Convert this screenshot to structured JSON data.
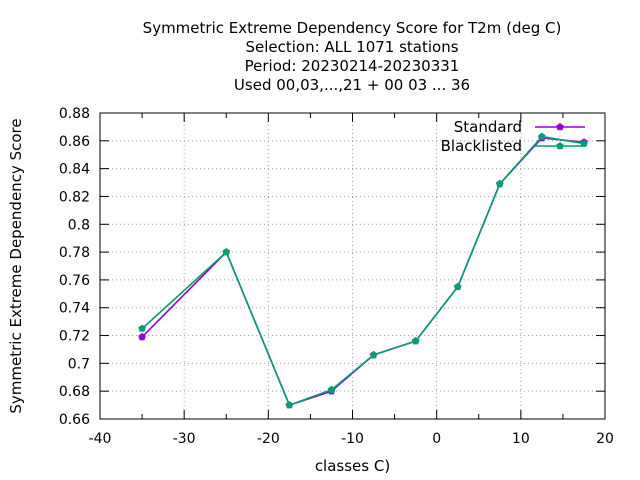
{
  "chart_data": {
    "type": "line",
    "title_lines": [
      "Symmetric Extreme Dependency Score  for T2m (deg C)",
      "Selection: ALL   1071 stations",
      "Period: 20230214-20230331",
      "Used  00,03,...,21  + 00 03 ... 36"
    ],
    "xlabel": "classes C)",
    "ylabel": "Symmetric Extreme Dependency Score",
    "xlim": [
      -40,
      20
    ],
    "ylim": [
      0.66,
      0.88
    ],
    "xticks": [
      -40,
      -30,
      -20,
      -10,
      0,
      10,
      20
    ],
    "yticks": [
      0.66,
      0.68,
      0.7,
      0.72,
      0.74,
      0.76,
      0.78,
      0.8,
      0.82,
      0.84,
      0.86,
      0.88
    ],
    "grid": true,
    "legend_position": "top-right",
    "series": [
      {
        "name": "Standard",
        "color": "#9400d3",
        "x": [
          -35,
          -25,
          -17.5,
          -12.5,
          -7.5,
          -2.5,
          2.5,
          7.5,
          12.5,
          17.5
        ],
        "y": [
          0.719,
          0.78,
          0.67,
          0.68,
          0.706,
          0.716,
          0.755,
          0.829,
          0.862,
          0.859
        ]
      },
      {
        "name": "Blacklisted",
        "color": "#009e73",
        "x": [
          -35,
          -25,
          -17.5,
          -12.5,
          -7.5,
          -2.5,
          2.5,
          7.5,
          12.5,
          17.5
        ],
        "y": [
          0.725,
          0.78,
          0.67,
          0.681,
          0.706,
          0.716,
          0.755,
          0.829,
          0.863,
          0.858
        ]
      }
    ]
  }
}
